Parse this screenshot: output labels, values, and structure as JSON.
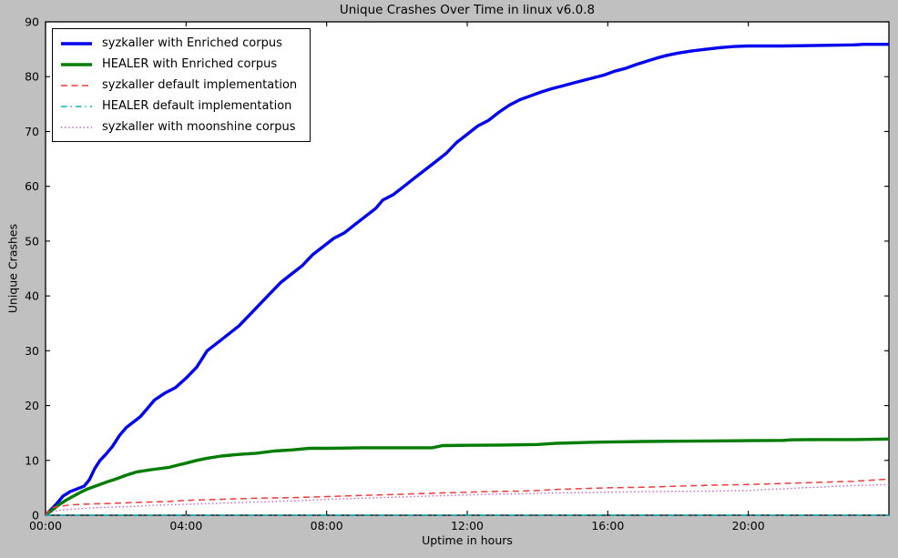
{
  "chart_data": {
    "type": "line",
    "title": "Unique Crashes Over Time in linux v6.0.8",
    "xlabel": "Uptime in hours",
    "ylabel": "Unique Crashes",
    "xlim": [
      0,
      24
    ],
    "ylim": [
      0,
      90
    ],
    "grid": false,
    "legend_position": "upper-left",
    "colors": {
      "figure_background": "#c0c0c0",
      "plot_background": "#ffffff",
      "axis": "#000000",
      "text": "#000000"
    },
    "x_ticks": [
      {
        "value": 0,
        "label": "00:00"
      },
      {
        "value": 4,
        "label": "04:00"
      },
      {
        "value": 8,
        "label": "08:00"
      },
      {
        "value": 12,
        "label": "12:00"
      },
      {
        "value": 16,
        "label": "16:00"
      },
      {
        "value": 20,
        "label": "20:00"
      }
    ],
    "y_ticks": [
      {
        "value": 0,
        "label": "0"
      },
      {
        "value": 10,
        "label": "10"
      },
      {
        "value": 20,
        "label": "20"
      },
      {
        "value": 30,
        "label": "30"
      },
      {
        "value": 40,
        "label": "40"
      },
      {
        "value": 50,
        "label": "50"
      },
      {
        "value": 60,
        "label": "60"
      },
      {
        "value": 70,
        "label": "70"
      },
      {
        "value": 80,
        "label": "80"
      },
      {
        "value": 90,
        "label": "90"
      }
    ],
    "series": [
      {
        "name": "syzkaller with Enriched corpus",
        "color": "#0000ee",
        "style": "solid",
        "width": 3.4,
        "points": [
          [
            0,
            0
          ],
          [
            0.15,
            1
          ],
          [
            0.3,
            2
          ],
          [
            0.5,
            3.5
          ],
          [
            0.7,
            4.3
          ],
          [
            0.9,
            4.8
          ],
          [
            1.1,
            5.3
          ],
          [
            1.25,
            6.5
          ],
          [
            1.4,
            8.5
          ],
          [
            1.55,
            10
          ],
          [
            1.7,
            11
          ],
          [
            1.9,
            12.5
          ],
          [
            2.1,
            14.5
          ],
          [
            2.3,
            16
          ],
          [
            2.5,
            17
          ],
          [
            2.7,
            18
          ],
          [
            2.9,
            19.5
          ],
          [
            3.1,
            21
          ],
          [
            3.4,
            22.3
          ],
          [
            3.7,
            23.3
          ],
          [
            4,
            25
          ],
          [
            4.3,
            27
          ],
          [
            4.6,
            30
          ],
          [
            4.9,
            31.5
          ],
          [
            5.2,
            33
          ],
          [
            5.5,
            34.5
          ],
          [
            5.8,
            36.5
          ],
          [
            6.1,
            38.5
          ],
          [
            6.4,
            40.5
          ],
          [
            6.7,
            42.5
          ],
          [
            7,
            44
          ],
          [
            7.3,
            45.5
          ],
          [
            7.6,
            47.5
          ],
          [
            7.9,
            49
          ],
          [
            8.2,
            50.5
          ],
          [
            8.5,
            51.5
          ],
          [
            8.8,
            53
          ],
          [
            9.1,
            54.5
          ],
          [
            9.4,
            56
          ],
          [
            9.6,
            57.5
          ],
          [
            9.9,
            58.5
          ],
          [
            10.2,
            60
          ],
          [
            10.5,
            61.5
          ],
          [
            10.8,
            63
          ],
          [
            11.1,
            64.5
          ],
          [
            11.4,
            66
          ],
          [
            11.7,
            68
          ],
          [
            12,
            69.5
          ],
          [
            12.3,
            71
          ],
          [
            12.6,
            72
          ],
          [
            12.9,
            73.5
          ],
          [
            13.2,
            74.8
          ],
          [
            13.5,
            75.8
          ],
          [
            13.8,
            76.5
          ],
          [
            14.1,
            77.2
          ],
          [
            14.4,
            77.8
          ],
          [
            14.7,
            78.3
          ],
          [
            15,
            78.8
          ],
          [
            15.3,
            79.3
          ],
          [
            15.6,
            79.8
          ],
          [
            15.9,
            80.3
          ],
          [
            16.2,
            81
          ],
          [
            16.5,
            81.5
          ],
          [
            16.8,
            82.2
          ],
          [
            17.1,
            82.8
          ],
          [
            17.4,
            83.4
          ],
          [
            17.7,
            83.9
          ],
          [
            18,
            84.3
          ],
          [
            18.4,
            84.7
          ],
          [
            18.8,
            85
          ],
          [
            19.2,
            85.3
          ],
          [
            19.6,
            85.5
          ],
          [
            20,
            85.6
          ],
          [
            21,
            85.6
          ],
          [
            22,
            85.7
          ],
          [
            23,
            85.8
          ],
          [
            23.3,
            85.9
          ],
          [
            24,
            85.9
          ]
        ]
      },
      {
        "name": "HEALER with Enriched corpus",
        "color": "#007c00",
        "style": "solid",
        "width": 3.4,
        "points": [
          [
            0,
            0
          ],
          [
            0.2,
            1
          ],
          [
            0.4,
            2
          ],
          [
            0.6,
            2.8
          ],
          [
            0.8,
            3.5
          ],
          [
            1,
            4.2
          ],
          [
            1.2,
            4.8
          ],
          [
            1.5,
            5.5
          ],
          [
            1.8,
            6.2
          ],
          [
            2,
            6.6
          ],
          [
            2.3,
            7.3
          ],
          [
            2.6,
            7.9
          ],
          [
            3,
            8.3
          ],
          [
            3.5,
            8.7
          ],
          [
            3.8,
            9.2
          ],
          [
            4,
            9.5
          ],
          [
            4.3,
            10
          ],
          [
            4.6,
            10.4
          ],
          [
            5,
            10.8
          ],
          [
            5.5,
            11.1
          ],
          [
            6,
            11.3
          ],
          [
            6.5,
            11.7
          ],
          [
            7,
            11.9
          ],
          [
            7.5,
            12.2
          ],
          [
            8,
            12.2
          ],
          [
            9,
            12.3
          ],
          [
            10,
            12.3
          ],
          [
            11,
            12.3
          ],
          [
            11.3,
            12.7
          ],
          [
            12,
            12.75
          ],
          [
            13,
            12.8
          ],
          [
            14,
            12.9
          ],
          [
            14.5,
            13.1
          ],
          [
            15,
            13.2
          ],
          [
            15.5,
            13.3
          ],
          [
            16,
            13.35
          ],
          [
            16.5,
            13.4
          ],
          [
            17,
            13.45
          ],
          [
            18,
            13.5
          ],
          [
            19,
            13.55
          ],
          [
            20,
            13.6
          ],
          [
            21,
            13.65
          ],
          [
            21.2,
            13.75
          ],
          [
            22,
            13.8
          ],
          [
            23,
            13.8
          ],
          [
            24,
            13.9
          ]
        ]
      },
      {
        "name": "syzkaller default implementation",
        "color": "#ef3b3b",
        "style": "dashed",
        "width": 1.5,
        "points": [
          [
            0,
            0
          ],
          [
            0.1,
            1.1
          ],
          [
            0.2,
            1.4
          ],
          [
            0.4,
            1.6
          ],
          [
            0.7,
            1.9
          ],
          [
            1,
            2
          ],
          [
            1.5,
            2.1
          ],
          [
            2,
            2.2
          ],
          [
            2.5,
            2.3
          ],
          [
            3,
            2.4
          ],
          [
            3.5,
            2.5
          ],
          [
            4,
            2.7
          ],
          [
            4.5,
            2.8
          ],
          [
            5,
            2.9
          ],
          [
            5.5,
            3
          ],
          [
            6,
            3.1
          ],
          [
            6.5,
            3.15
          ],
          [
            7,
            3.2
          ],
          [
            7.5,
            3.3
          ],
          [
            8,
            3.4
          ],
          [
            8.5,
            3.5
          ],
          [
            9,
            3.6
          ],
          [
            9.5,
            3.7
          ],
          [
            10,
            3.8
          ],
          [
            10.5,
            3.9
          ],
          [
            11,
            4
          ],
          [
            11.5,
            4.1
          ],
          [
            12,
            4.2
          ],
          [
            12.5,
            4.3
          ],
          [
            13,
            4.35
          ],
          [
            13.5,
            4.4
          ],
          [
            14,
            4.5
          ],
          [
            14.5,
            4.7
          ],
          [
            15,
            4.8
          ],
          [
            15.5,
            4.9
          ],
          [
            16,
            5
          ],
          [
            17,
            5.1
          ],
          [
            17.5,
            5.2
          ],
          [
            18,
            5.3
          ],
          [
            18.5,
            5.4
          ],
          [
            19,
            5.5
          ],
          [
            20,
            5.6
          ],
          [
            20.5,
            5.7
          ],
          [
            21,
            5.8
          ],
          [
            21.5,
            5.9
          ],
          [
            22,
            6
          ],
          [
            22.5,
            6.1
          ],
          [
            23,
            6.2
          ],
          [
            23.5,
            6.4
          ],
          [
            24,
            6.6
          ]
        ]
      },
      {
        "name": "HEALER default implementation",
        "color": "#00b5bc",
        "style": "dashdot",
        "width": 1.5,
        "points": [
          [
            0,
            0
          ],
          [
            6,
            0
          ],
          [
            12,
            0
          ],
          [
            18,
            0
          ],
          [
            24,
            0
          ]
        ]
      },
      {
        "name": "syzkaller with moonshine corpus",
        "color": "#cc55cc",
        "style": "dotted",
        "width": 1.4,
        "points": [
          [
            0,
            0
          ],
          [
            0.1,
            0.5
          ],
          [
            0.3,
            0.8
          ],
          [
            0.5,
            1
          ],
          [
            1,
            1.2
          ],
          [
            1.5,
            1.4
          ],
          [
            2,
            1.5
          ],
          [
            2.5,
            1.6
          ],
          [
            3,
            1.8
          ],
          [
            3.5,
            1.9
          ],
          [
            4,
            2
          ],
          [
            4.5,
            2.1
          ],
          [
            5,
            2.2
          ],
          [
            5.5,
            2.3
          ],
          [
            6,
            2.4
          ],
          [
            6.5,
            2.5
          ],
          [
            7,
            2.6
          ],
          [
            7.5,
            2.7
          ],
          [
            8,
            2.9
          ],
          [
            8.5,
            3
          ],
          [
            9,
            3.1
          ],
          [
            9.5,
            3.2
          ],
          [
            10,
            3.3
          ],
          [
            10.5,
            3.4
          ],
          [
            11,
            3.5
          ],
          [
            11.5,
            3.6
          ],
          [
            12,
            3.7
          ],
          [
            12.5,
            3.8
          ],
          [
            13,
            3.85
          ],
          [
            13.5,
            3.9
          ],
          [
            14,
            4
          ],
          [
            15,
            4.1
          ],
          [
            16,
            4.2
          ],
          [
            17,
            4.3
          ],
          [
            18,
            4.35
          ],
          [
            19,
            4.4
          ],
          [
            20,
            4.5
          ],
          [
            20.5,
            4.7
          ],
          [
            21,
            4.8
          ],
          [
            21.5,
            5
          ],
          [
            22,
            5.1
          ],
          [
            22.5,
            5.3
          ],
          [
            23,
            5.4
          ],
          [
            23.5,
            5.5
          ],
          [
            24,
            5.6
          ]
        ]
      }
    ]
  }
}
